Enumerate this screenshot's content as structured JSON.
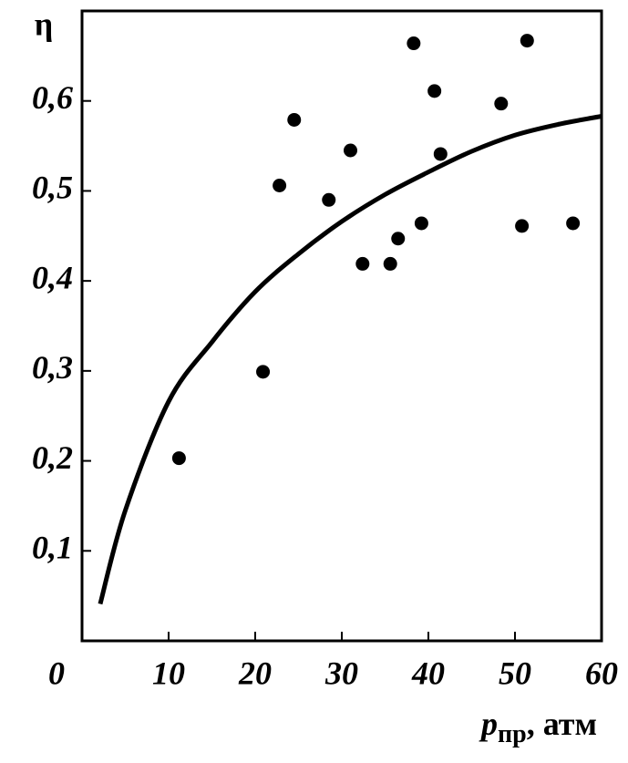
{
  "chart_data": {
    "type": "scatter",
    "y_label": "η",
    "x_label": {
      "symbol": "p",
      "subscript": "пр",
      "unit": ", атм"
    },
    "xlim": [
      0,
      60
    ],
    "xticks": [
      0,
      10,
      20,
      30,
      40,
      50,
      60
    ],
    "ylim": [
      0,
      0.7
    ],
    "yticks": [
      {
        "value": 0.1,
        "label": "0,1"
      },
      {
        "value": 0.2,
        "label": "0,2"
      },
      {
        "value": 0.3,
        "label": "0,3"
      },
      {
        "value": 0.4,
        "label": "0,4"
      },
      {
        "value": 0.5,
        "label": "0,5"
      },
      {
        "value": 0.6,
        "label": "0,6"
      }
    ],
    "points": {
      "color": "#000000",
      "x": [
        11.2,
        20.9,
        22.8,
        24.5,
        28.5,
        31.0,
        32.4,
        35.6,
        36.5,
        38.3,
        39.2,
        40.7,
        41.4,
        48.4,
        50.8,
        51.4,
        56.7
      ],
      "values": [
        0.203,
        0.299,
        0.506,
        0.579,
        0.49,
        0.545,
        0.419,
        0.419,
        0.447,
        0.664,
        0.464,
        0.611,
        0.541,
        0.597,
        0.461,
        0.667,
        0.464
      ]
    },
    "curve": {
      "color": "#000000",
      "x": [
        2.1,
        5,
        10,
        15,
        20,
        25,
        30,
        35,
        40,
        45,
        50,
        55,
        60
      ],
      "values": [
        0.041,
        0.145,
        0.266,
        0.332,
        0.388,
        0.43,
        0.466,
        0.496,
        0.521,
        0.544,
        0.562,
        0.574,
        0.583
      ]
    }
  }
}
